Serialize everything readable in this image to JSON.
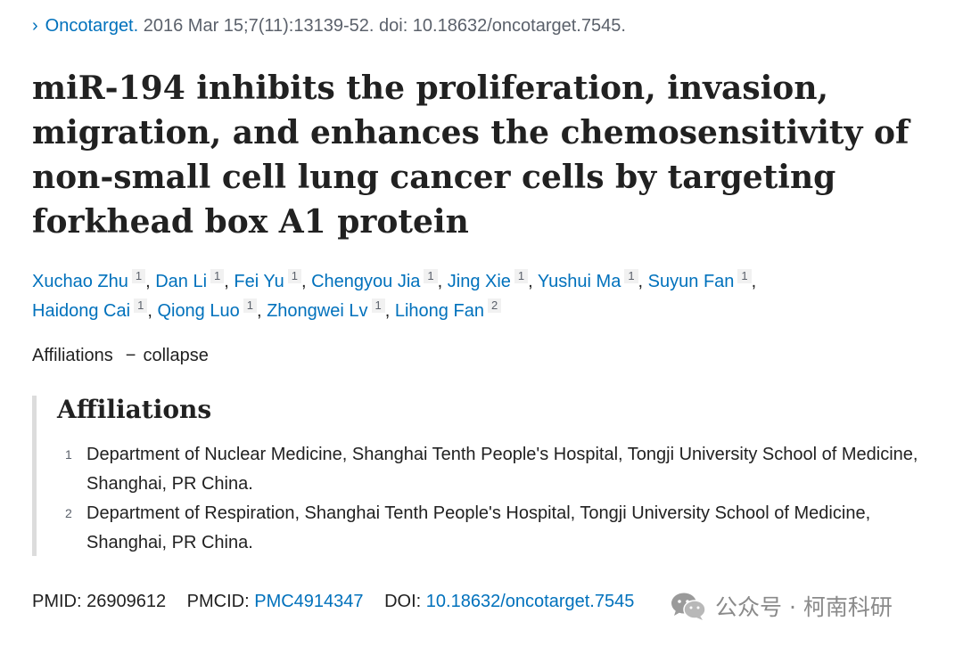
{
  "citation": {
    "journal": "Oncotarget.",
    "details": "2016 Mar 15;7(11):13139-52. doi: 10.18632/oncotarget.7545."
  },
  "article": {
    "title": "miR-194 inhibits the proliferation, invasion, migration, and enhances the chemosensitivity of non-small cell lung cancer cells by targeting forkhead box A1 protein"
  },
  "authors": [
    {
      "name": "Xuchao Zhu",
      "aff": "1"
    },
    {
      "name": "Dan Li",
      "aff": "1"
    },
    {
      "name": "Fei Yu",
      "aff": "1"
    },
    {
      "name": "Chengyou Jia",
      "aff": "1"
    },
    {
      "name": "Jing Xie",
      "aff": "1"
    },
    {
      "name": "Yushui Ma",
      "aff": "1"
    },
    {
      "name": "Suyun Fan",
      "aff": "1"
    },
    {
      "name": "Haidong Cai",
      "aff": "1"
    },
    {
      "name": "Qiong Luo",
      "aff": "1"
    },
    {
      "name": "Zhongwei Lv",
      "aff": "1"
    },
    {
      "name": "Lihong Fan",
      "aff": "2"
    }
  ],
  "affiliations_toggle": {
    "label": "Affiliations",
    "dash": "−",
    "action": "collapse"
  },
  "affiliations": {
    "heading": "Affiliations",
    "items": [
      {
        "num": "1",
        "text": "Department of Nuclear Medicine, Shanghai Tenth People's Hospital, Tongji University School of Medicine, Shanghai, PR China."
      },
      {
        "num": "2",
        "text": "Department of Respiration, Shanghai Tenth People's Hospital, Tongji University School of Medicine, Shanghai, PR China."
      }
    ]
  },
  "identifiers": {
    "pmid_label": "PMID:",
    "pmid": "26909612",
    "pmcid_label": "PMCID:",
    "pmcid": "PMC4914347",
    "doi_label": "DOI:",
    "doi": "10.18632/oncotarget.7545"
  },
  "watermark": {
    "text": "公众号 · 柯南科研",
    "icon": "wechat-icon"
  },
  "colors": {
    "link": "#0071bc",
    "text": "#212121",
    "muted": "#5b616b",
    "border": "#dcdcdc"
  }
}
